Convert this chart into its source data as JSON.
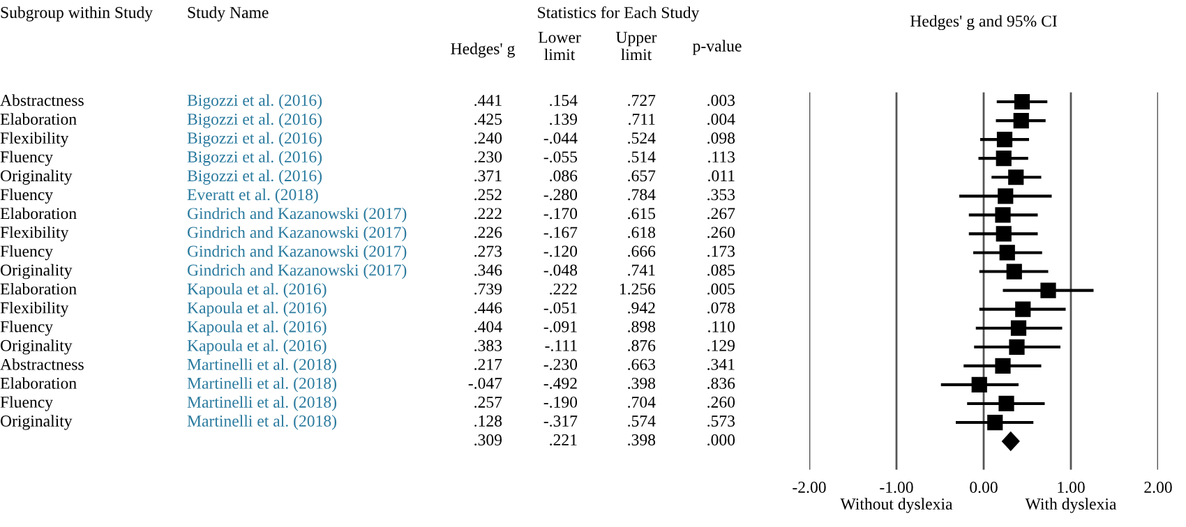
{
  "chart_data": [
    {
      "type": "other",
      "title": "Statistics for Each Study",
      "categories": [
        "Subgroup within Study",
        "Study Name",
        "Hedges' g",
        "Lower\nlimit",
        "Upper\nlimit",
        "p-value"
      ],
      "cell_labels": [
        [
          "Abstractness",
          "Bigozzi et al. (2016)",
          ".441",
          ".154",
          ".727",
          ".003"
        ],
        [
          "Elaboration",
          "Bigozzi et al. (2016)",
          ".425",
          ".139",
          ".711",
          ".004"
        ],
        [
          "Flexibility",
          "Bigozzi et al. (2016)",
          ".240",
          "-.044",
          ".524",
          ".098"
        ],
        [
          "Fluency",
          "Bigozzi et al. (2016)",
          ".230",
          "-.055",
          ".514",
          ".113"
        ],
        [
          "Originality",
          "Bigozzi et al. (2016)",
          ".371",
          ".086",
          ".657",
          ".011"
        ],
        [
          "Fluency",
          "Everatt et al. (2018)",
          ".252",
          "-.280",
          ".784",
          ".353"
        ],
        [
          "Elaboration",
          "Gindrich and Kazanowski (2017)",
          ".222",
          "-.170",
          ".615",
          ".267"
        ],
        [
          "Flexibility",
          "Gindrich and Kazanowski (2017)",
          ".226",
          "-.167",
          ".618",
          ".260"
        ],
        [
          "Fluency",
          "Gindrich and Kazanowski (2017)",
          ".273",
          "-.120",
          ".666",
          ".173"
        ],
        [
          "Originality",
          "Gindrich and Kazanowski (2017)",
          ".346",
          "-.048",
          ".741",
          ".085"
        ],
        [
          "Elaboration",
          "Kapoula et al. (2016)",
          ".739",
          ".222",
          "1.256",
          ".005"
        ],
        [
          "Flexibility",
          "Kapoula et al. (2016)",
          ".446",
          "-.051",
          ".942",
          ".078"
        ],
        [
          "Fluency",
          "Kapoula et al. (2016)",
          ".404",
          "-.091",
          ".898",
          ".110"
        ],
        [
          "Originality",
          "Kapoula et al. (2016)",
          ".383",
          "-.111",
          ".876",
          ".129"
        ],
        [
          "Abstractness",
          "Martinelli et al. (2018)",
          ".217",
          "-.230",
          ".663",
          ".341"
        ],
        [
          "Elaboration",
          "Martinelli et al. (2018)",
          "-.047",
          "-.492",
          ".398",
          ".836"
        ],
        [
          "Fluency",
          "Martinelli et al. (2018)",
          ".257",
          "-.190",
          ".704",
          ".260"
        ],
        [
          "Originality",
          "Martinelli et al. (2018)",
          ".128",
          "-.317",
          ".574",
          ".573"
        ],
        [
          null,
          null,
          ".309",
          ".221",
          ".398",
          ".000"
        ]
      ]
    },
    {
      "type": "scatter",
      "orientation": "horizontal",
      "title": "Hedges' g and 95% CI",
      "categories": [
        null,
        null,
        null,
        null,
        null,
        null,
        null,
        null,
        null,
        null,
        null,
        null,
        null,
        null,
        null,
        null,
        null,
        null,
        null,
        null
      ],
      "series": [
        {
          "color": "#000000",
          "marker": "square",
          "values": [
            0.44,
            0.43,
            0.24,
            0.23,
            0.37,
            0.25,
            0.22,
            0.23,
            0.27,
            0.35,
            0.74,
            0.45,
            0.4,
            0.38,
            0.22,
            -0.05,
            0.26,
            0.13,
            null,
            null
          ],
          "errors": [
            [
              0.15,
              0.73
            ],
            [
              0.14,
              0.71
            ],
            [
              -0.04,
              0.52
            ],
            [
              -0.06,
              0.51
            ],
            [
              0.09,
              0.66
            ],
            [
              -0.28,
              0.78
            ],
            [
              -0.17,
              0.62
            ],
            [
              -0.17,
              0.62
            ],
            [
              -0.12,
              0.67
            ],
            [
              -0.05,
              0.74
            ],
            [
              0.22,
              1.26
            ],
            [
              -0.05,
              0.94
            ],
            [
              -0.09,
              0.9
            ],
            [
              -0.11,
              0.88
            ],
            [
              -0.23,
              0.66
            ],
            [
              -0.49,
              0.4
            ],
            [
              -0.19,
              0.7
            ],
            [
              -0.32,
              0.57
            ],
            null,
            null
          ]
        },
        {
          "color": "#000000",
          "marker": "diamond",
          "values": [
            null,
            null,
            null,
            null,
            null,
            null,
            null,
            null,
            null,
            null,
            null,
            null,
            null,
            null,
            null,
            null,
            null,
            null,
            0.31,
            null
          ],
          "errors": [
            null,
            null,
            null,
            null,
            null,
            null,
            null,
            null,
            null,
            null,
            null,
            null,
            null,
            null,
            null,
            null,
            null,
            null,
            [
              0.22,
              0.4
            ],
            null
          ]
        }
      ],
      "xlim": [
        -2,
        2
      ],
      "xticks": [
        {
          "value": -2,
          "label": "-2.00"
        },
        {
          "value": -1,
          "label": "-1.00"
        },
        {
          "value": 0,
          "label": "0.00"
        },
        {
          "value": 1,
          "label": "1.00"
        },
        {
          "value": 2,
          "label": "2.00"
        }
      ],
      "grid": "x",
      "tick_labels": "x",
      "annotations": [
        "Without dyslexia",
        "With dyslexia"
      ]
    }
  ]
}
